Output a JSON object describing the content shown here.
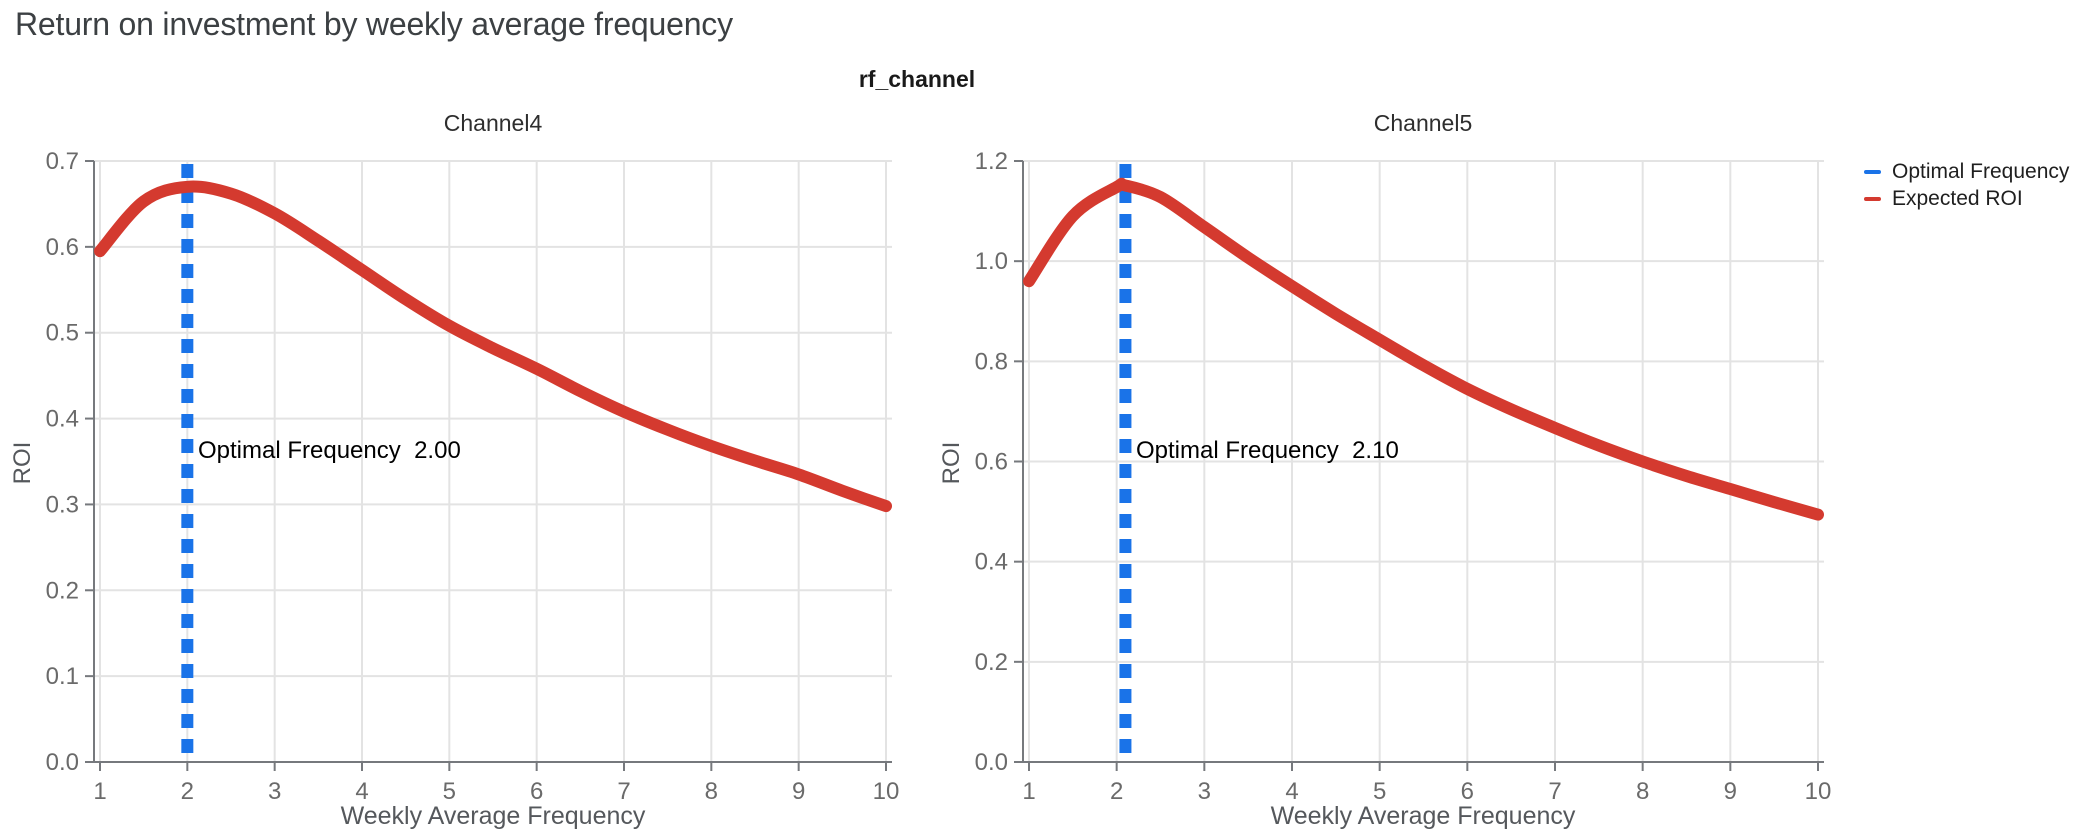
{
  "page_title": "Return on investment by weekly average frequency",
  "figure_title": "rf_channel",
  "colors": {
    "optimal_frequency_blue": "#1a73e8",
    "expected_roi_red": "#d43a2f",
    "gridline": "#e3e3e3",
    "axis_spine": "#76797d",
    "tick_label": "#6a6a6a"
  },
  "legend": {
    "items": [
      {
        "label": "Optimal Frequency",
        "color": "#1a73e8"
      },
      {
        "label": "Expected ROI",
        "color": "#d43a2f"
      }
    ]
  },
  "chart_data": [
    {
      "type": "line",
      "title": "Channel4",
      "xlabel": "Weekly Average Frequency",
      "ylabel": "ROI",
      "xlim": [
        0.93,
        10.08
      ],
      "ylim": [
        0,
        0.7
      ],
      "x_tick_labels": [
        "1",
        "2",
        "3",
        "4",
        "5",
        "6",
        "7",
        "8",
        "9",
        "10"
      ],
      "x_tick_values": [
        1,
        2,
        3,
        4,
        5,
        6,
        7,
        8,
        9,
        10
      ],
      "y_tick_labels": [
        "0.0",
        "0.1",
        "0.2",
        "0.3",
        "0.4",
        "0.5",
        "0.6",
        "0.7"
      ],
      "y_tick_values": [
        0,
        0.1,
        0.2,
        0.3,
        0.4,
        0.5,
        0.6,
        0.7
      ],
      "grid": true,
      "optimal_frequency": 2.0,
      "annotation_text": "Optimal Frequency  2.00",
      "series": [
        {
          "name": "Expected ROI",
          "x": [
            1,
            1.5,
            2,
            2.5,
            3,
            3.5,
            4,
            4.5,
            5,
            5.5,
            6,
            6.5,
            7,
            7.5,
            8,
            8.5,
            9,
            9.5,
            10
          ],
          "y": [
            0.595,
            0.653,
            0.67,
            0.662,
            0.639,
            0.607,
            0.573,
            0.539,
            0.508,
            0.482,
            0.458,
            0.432,
            0.408,
            0.387,
            0.368,
            0.351,
            0.335,
            0.316,
            0.298
          ]
        }
      ]
    },
    {
      "type": "line",
      "title": "Channel5",
      "xlabel": "Weekly Average Frequency",
      "ylabel": "ROI",
      "xlim": [
        0.93,
        10.08
      ],
      "ylim": [
        0,
        1.2
      ],
      "x_tick_labels": [
        "1",
        "2",
        "3",
        "4",
        "5",
        "6",
        "7",
        "8",
        "9",
        "10"
      ],
      "x_tick_values": [
        1,
        2,
        3,
        4,
        5,
        6,
        7,
        8,
        9,
        10
      ],
      "y_tick_labels": [
        "0.0",
        "0.2",
        "0.4",
        "0.6",
        "0.8",
        "1.0",
        "1.2"
      ],
      "y_tick_values": [
        0,
        0.2,
        0.4,
        0.6,
        0.8,
        1.0,
        1.2
      ],
      "grid": true,
      "optimal_frequency": 2.1,
      "annotation_text": "Optimal Frequency  2.10",
      "series": [
        {
          "name": "Expected ROI",
          "x": [
            1,
            1.5,
            2,
            2.1,
            2.5,
            3,
            3.5,
            4,
            4.5,
            5,
            5.5,
            6,
            6.5,
            7,
            7.5,
            8,
            8.5,
            9,
            9.5,
            10
          ],
          "y": [
            0.96,
            1.09,
            1.148,
            1.151,
            1.128,
            1.068,
            1.007,
            0.95,
            0.895,
            0.843,
            0.792,
            0.745,
            0.704,
            0.667,
            0.632,
            0.6,
            0.571,
            0.545,
            0.519,
            0.494
          ]
        }
      ]
    }
  ]
}
